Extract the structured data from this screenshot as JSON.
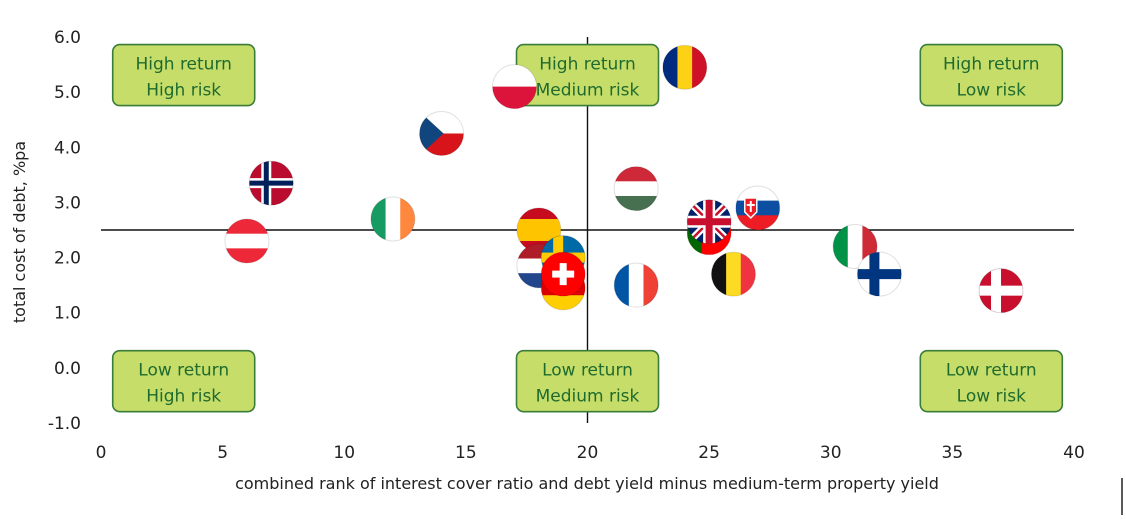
{
  "chart_data": {
    "type": "scatter",
    "xlabel": "combined rank of interest cover ratio and debt yield minus medium-term property yield",
    "ylabel": "total cost of debt, %pa",
    "xlim": [
      0,
      40
    ],
    "ylim": [
      -1.0,
      6.0
    ],
    "x_ticks": [
      "0",
      "5",
      "10",
      "15",
      "20",
      "25",
      "30",
      "35",
      "40"
    ],
    "y_ticks": [
      "-1.0",
      "0.0",
      "1.0",
      "2.0",
      "3.0",
      "4.0",
      "5.0",
      "6.0"
    ],
    "grid": false,
    "reference_lines": {
      "x": 20,
      "y": 2.5
    },
    "quadrant_labels": [
      {
        "line1": "High return",
        "line2": "High risk",
        "x": 3.4,
        "y": 5.3
      },
      {
        "line1": "High return",
        "line2": "Medium risk",
        "x": 20.0,
        "y": 5.3
      },
      {
        "line1": "High return",
        "line2": "Low risk",
        "x": 36.6,
        "y": 5.3
      },
      {
        "line1": "Low return",
        "line2": "High risk",
        "x": 3.4,
        "y": -0.25
      },
      {
        "line1": "Low return",
        "line2": "Medium risk",
        "x": 20.0,
        "y": -0.25
      },
      {
        "line1": "Low return",
        "line2": "Low risk",
        "x": 36.6,
        "y": -0.25
      }
    ],
    "points": [
      {
        "flag": "norway-flag",
        "x": 7,
        "y": 3.35
      },
      {
        "flag": "austria-flag",
        "x": 6,
        "y": 2.3
      },
      {
        "flag": "czech-flag",
        "x": 14,
        "y": 4.25
      },
      {
        "flag": "ireland-flag",
        "x": 12,
        "y": 2.7
      },
      {
        "flag": "poland-flag",
        "x": 17,
        "y": 5.1
      },
      {
        "flag": "romania-flag",
        "x": 24,
        "y": 5.45
      },
      {
        "flag": "hungary-flag",
        "x": 22,
        "y": 3.25
      },
      {
        "flag": "spain-flag",
        "x": 18,
        "y": 2.5
      },
      {
        "flag": "netherlands-flag",
        "x": 18,
        "y": 1.85
      },
      {
        "flag": "sweden-flag",
        "x": 19,
        "y": 2.0
      },
      {
        "flag": "germany-flag",
        "x": 19,
        "y": 1.45
      },
      {
        "flag": "switzerland-flag",
        "x": 19,
        "y": 1.7
      },
      {
        "flag": "france-flag",
        "x": 22,
        "y": 1.5
      },
      {
        "flag": "portugal-flag",
        "x": 25,
        "y": 2.45
      },
      {
        "flag": "uk-flag",
        "x": 25,
        "y": 2.65
      },
      {
        "flag": "slovakia-flag",
        "x": 27,
        "y": 2.9
      },
      {
        "flag": "belgium-flag",
        "x": 26,
        "y": 1.7
      },
      {
        "flag": "italy-flag",
        "x": 31,
        "y": 2.2
      },
      {
        "flag": "finland-flag",
        "x": 32,
        "y": 1.7
      },
      {
        "flag": "denmark-flag",
        "x": 37,
        "y": 1.4
      }
    ]
  }
}
